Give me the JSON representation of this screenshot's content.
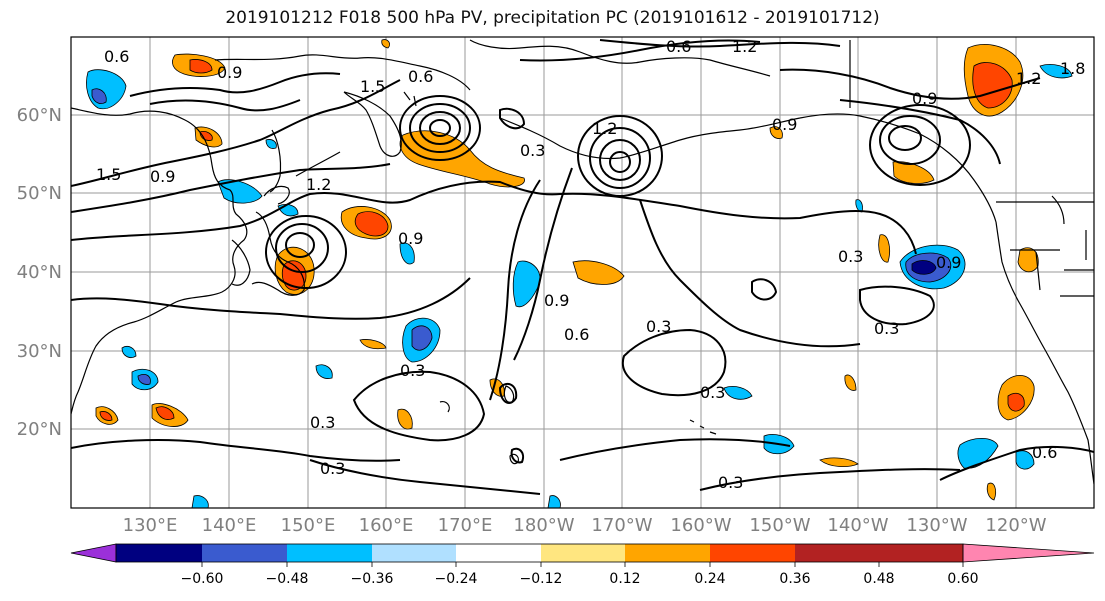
{
  "title": "2019101212 F018 500 hPa PV, precipitation PC (2019101612 - 2019101712)",
  "map": {
    "lat_labels": [
      "60°N",
      "50°N",
      "40°N",
      "30°N",
      "20°N"
    ],
    "lon_labels": [
      "130°E",
      "140°E",
      "150°E",
      "160°E",
      "170°E",
      "180°W",
      "170°W",
      "160°W",
      "150°W",
      "140°W",
      "130°W",
      "120°W"
    ],
    "contour_labels": [
      "0.6",
      "0.9",
      "1.5",
      "0.6",
      "1.2",
      "0.6",
      "0.9",
      "1.5",
      "1.2",
      "0.9",
      "0.3",
      "0.9",
      "1.2",
      "0.9",
      "0.3",
      "0.9",
      "0.6",
      "0.3",
      "0.3",
      "0.3",
      "0.3",
      "0.9",
      "0.3",
      "0.6",
      "0.3",
      "0.3",
      "1.2",
      "1.8"
    ]
  },
  "colorbar": {
    "ticks": [
      "−0.60",
      "−0.48",
      "−0.36",
      "−0.24",
      "−0.12",
      "0.12",
      "0.24",
      "0.36",
      "0.48",
      "0.60"
    ],
    "colors": [
      "#9b30d9",
      "#000080",
      "#3a5bcf",
      "#00bfff",
      "#b0e0ff",
      "#ffffff",
      "#ffe680",
      "#ffa500",
      "#ff4500",
      "#b22222",
      "#ff85b0"
    ]
  }
}
